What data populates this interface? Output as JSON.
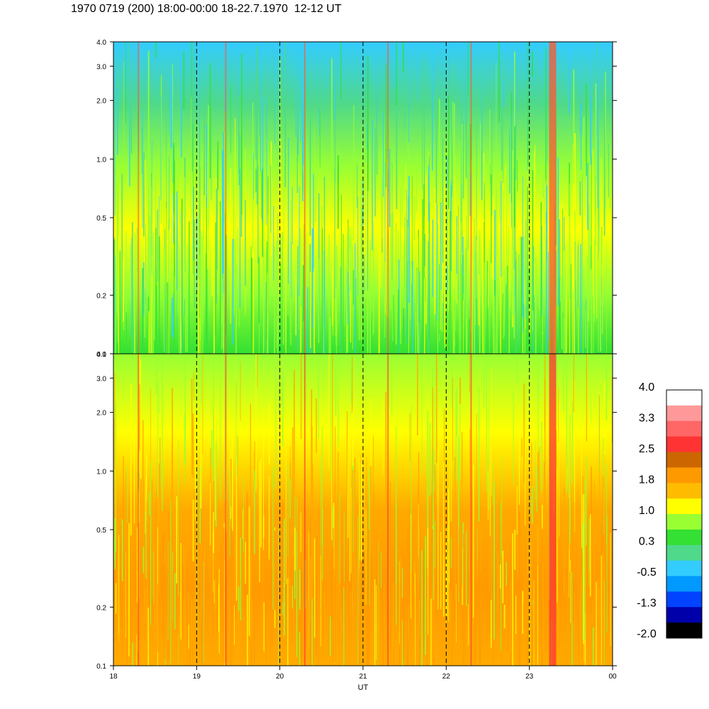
{
  "title": "1970 0719 (200) 18:00-00:00 18-22.7.1970  12-12 UT",
  "chart_data": {
    "type": "heatmap",
    "xlabel": "UT",
    "x_ticks": [
      "18",
      "19",
      "20",
      "21",
      "22",
      "23",
      "00"
    ],
    "x_range_hours": [
      18,
      24
    ],
    "dashed_lines_at_hours": [
      19,
      20,
      21,
      22,
      23
    ],
    "y_scale": "log",
    "y_ticks": [
      "0.1",
      "0.2",
      "0.5",
      "1.0",
      "2.0",
      "3.0",
      "4.0"
    ],
    "y_tick_values": [
      0.1,
      0.2,
      0.5,
      1.0,
      2.0,
      3.0,
      4.0
    ],
    "ylim": [
      0.1,
      4.0
    ],
    "panels": [
      {
        "position": "top",
        "dominant_colors_low_to_high_frequency": [
          "#33e033",
          "#99ff33",
          "#ffff00",
          "#99ff33",
          "#4fd98a",
          "#33ccff"
        ],
        "vertical_red_streaks_at_hours": [
          18.3,
          19.35,
          20.3,
          21.3,
          22.3,
          23.28
        ]
      },
      {
        "position": "bottom",
        "dominant_colors_low_to_high_frequency": [
          "#ffaa00",
          "#ff9900",
          "#ffaa00",
          "#ffff00",
          "#99ff33"
        ],
        "vertical_red_streaks_at_hours": [
          18.3,
          19.35,
          20.3,
          21.3,
          22.3,
          23.28
        ]
      }
    ],
    "colorbar": {
      "tick_labels": [
        "4.0",
        "3.3",
        "2.5",
        "1.8",
        "1.0",
        "0.3",
        "-0.5",
        "-1.3",
        "-2.0"
      ],
      "colors_top_to_bottom": [
        "#ffffff",
        "#ff9999",
        "#ff6666",
        "#ff3333",
        "#cc6600",
        "#ff9900",
        "#ffbb00",
        "#ffff00",
        "#99ff33",
        "#33e033",
        "#4fd98a",
        "#33ccff",
        "#0099ff",
        "#0044ff",
        "#0000aa",
        "#000000"
      ]
    }
  }
}
